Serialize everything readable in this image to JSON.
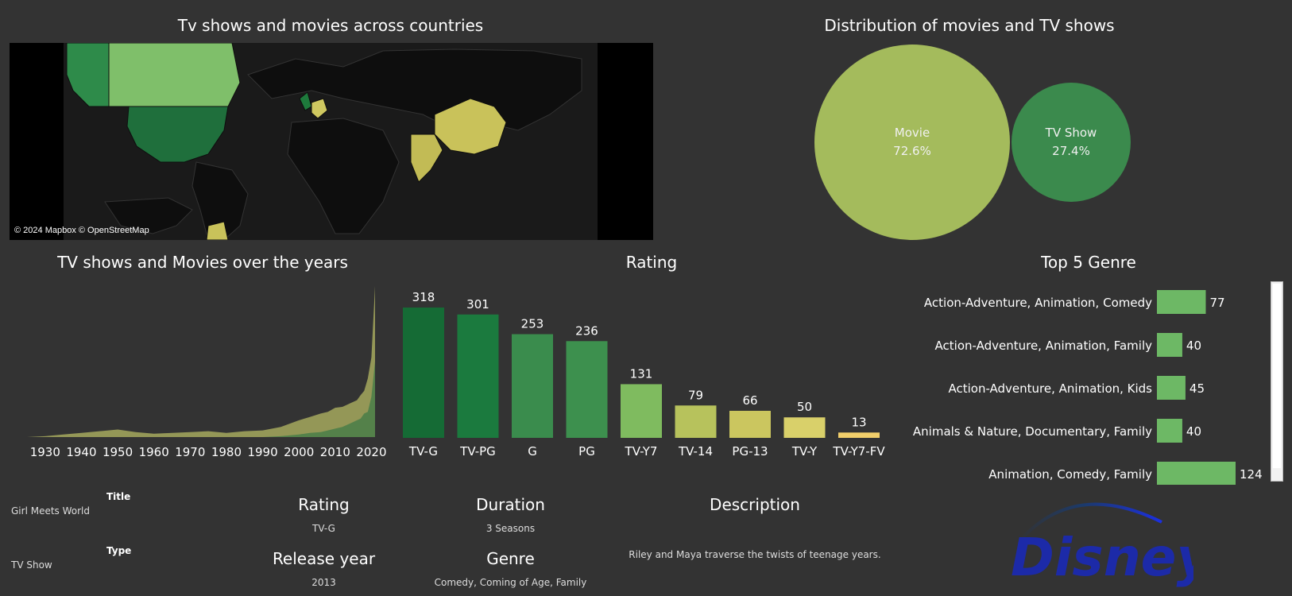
{
  "map": {
    "title": "Tv shows and movies across countries",
    "attribution": "© 2024 Mapbox © OpenStreetMap",
    "colors": {
      "us": "#1f6f3c",
      "canada": "#7fbf6a",
      "alaska": "#2e8b4a",
      "china": "#c9c25a",
      "india": "#c2bb55",
      "europe_uk": "#1e7a3c",
      "europe_fr": "#cfc860",
      "argentina": "#c9c25a",
      "ocean": "#1c1c1c",
      "land": "#111111"
    }
  },
  "distribution": {
    "title": "Distribution of movies and TV shows",
    "movie": {
      "label": "Movie",
      "percent": "72.6%",
      "color": "#a4bb5c"
    },
    "tvshow": {
      "label": "TV Show",
      "percent": "27.4%",
      "color": "#3b8a4d"
    }
  },
  "years": {
    "title": "TV shows and Movies over the years",
    "ticks": [
      "1930",
      "1940",
      "1950",
      "1960",
      "1970",
      "1980",
      "1990",
      "2000",
      "2010",
      "2020"
    ],
    "colors": {
      "movie": "#9ea25b",
      "tvshow": "#3f7a46"
    }
  },
  "rating": {
    "title": "Rating",
    "colors": [
      "#156b35",
      "#1b7a3e",
      "#3a8c4d",
      "#3d904e",
      "#7fbb5f",
      "#b7c25c",
      "#cbc65f",
      "#d9d06a",
      "#f2cf6b"
    ]
  },
  "genre": {
    "title": "Top 5 Genre",
    "bar_color": "#6db865"
  },
  "detail": {
    "title_label": "Title",
    "title_value": "Girl Meets World",
    "type_label": "Type",
    "type_value": "TV Show",
    "rating_heading": "Rating",
    "rating_value": "TV-G",
    "duration_heading": "Duration",
    "duration_value": "3 Seasons",
    "release_heading": "Release year",
    "release_value": "2013",
    "genre_heading": "Genre",
    "genre_value": "Comedy, Coming of Age, Family",
    "description_heading": "Description",
    "description_value": "Riley and Maya traverse the twists of teenage years."
  },
  "logo": {
    "text": "Disney+",
    "color": "#1c2aa8"
  },
  "chart_data": [
    {
      "type": "pie",
      "title": "Distribution of movies and TV shows",
      "categories": [
        "Movie",
        "TV Show"
      ],
      "values": [
        72.6,
        27.4
      ]
    },
    {
      "type": "area",
      "title": "TV shows and Movies over the years",
      "x": [
        1925,
        1930,
        1935,
        1940,
        1945,
        1950,
        1955,
        1960,
        1965,
        1970,
        1975,
        1980,
        1985,
        1990,
        1995,
        2000,
        2003,
        2006,
        2008,
        2010,
        2012,
        2014,
        2016,
        2017,
        2018,
        2019,
        2020,
        2021
      ],
      "series": [
        {
          "name": "Movie",
          "values": [
            0,
            1,
            3,
            5,
            7,
            9,
            6,
            4,
            5,
            6,
            7,
            5,
            7,
            8,
            12,
            20,
            24,
            28,
            30,
            35,
            36,
            40,
            44,
            50,
            55,
            70,
            95,
            180
          ]
        },
        {
          "name": "TV Show",
          "values": [
            0,
            0,
            0,
            0,
            0,
            0,
            0,
            0,
            0,
            0,
            0,
            0,
            0,
            0,
            1,
            3,
            5,
            6,
            8,
            10,
            12,
            16,
            20,
            22,
            28,
            30,
            48,
            90
          ]
        }
      ],
      "xlim": [
        1925,
        2021
      ]
    },
    {
      "type": "bar",
      "title": "Rating",
      "categories": [
        "TV-G",
        "TV-PG",
        "G",
        "PG",
        "TV-Y7",
        "TV-14",
        "PG-13",
        "TV-Y",
        "TV-Y7-FV"
      ],
      "values": [
        318,
        301,
        253,
        236,
        131,
        79,
        66,
        50,
        13
      ]
    },
    {
      "type": "bar",
      "title": "Top 5 Genre",
      "categories": [
        "Action-Adventure, Animation, Comedy",
        "Action-Adventure, Animation, Family",
        "Action-Adventure, Animation, Kids",
        "Animals & Nature, Documentary, Family",
        "Animation, Comedy, Family"
      ],
      "values": [
        77,
        40,
        45,
        40,
        124
      ]
    }
  ]
}
